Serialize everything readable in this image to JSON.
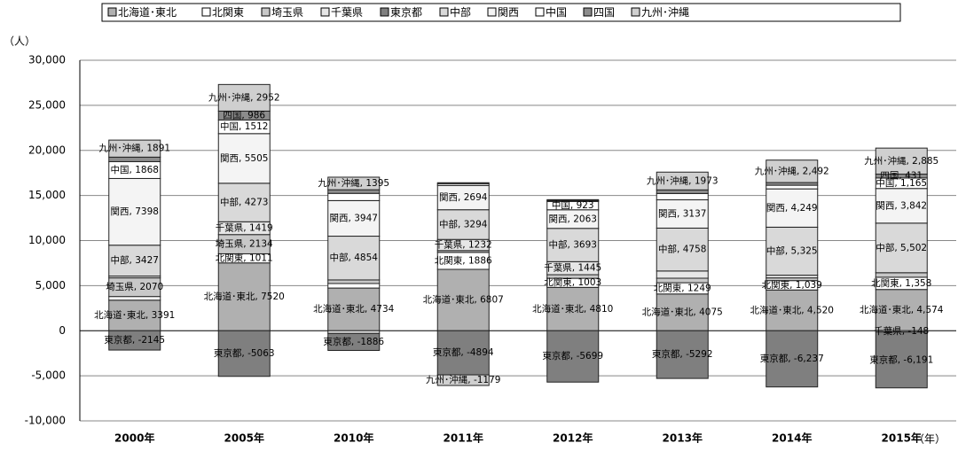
{
  "chart_data": {
    "type": "stacked-bar",
    "y_label": "（人）",
    "x_label": "（年）",
    "categories": [
      "2000年",
      "2005年",
      "2010年",
      "2011年",
      "2012年",
      "2013年",
      "2014年",
      "2015年"
    ],
    "ylim": [
      -10000,
      30000
    ],
    "yticks": [
      {
        "value": -10000,
        "label": "-10,000"
      },
      {
        "value": -5000,
        "label": "-5,000"
      },
      0,
      {
        "value": 5000,
        "label": "5,000"
      },
      {
        "value": 10000,
        "label": "10,000"
      },
      {
        "value": 15000,
        "label": "15,000"
      },
      {
        "value": 20000,
        "label": "20,000"
      },
      {
        "value": 25000,
        "label": "25,000"
      },
      {
        "value": 30000,
        "label": "30,000"
      }
    ],
    "grid": true,
    "legend": "top",
    "series": [
      {
        "name": "北海道･東北",
        "color": "#b0b0b0",
        "values": [
          3391,
          7520,
          4734,
          6807,
          4810,
          4075,
          4520,
          4574
        ],
        "value_labels": [
          "北海道･東北, 3391",
          "北海道･東北, 7520",
          "北海道･東北, 4734",
          "北海道･東北, 6807",
          "北海道･東北, 4810",
          "北海道･東北, 4075",
          "北海道･東北, 4,520",
          "北海道･東北, 4,574"
        ]
      },
      {
        "name": "北関東",
        "color": "#ffffff",
        "values": [
          400,
          1011,
          500,
          1886,
          1003,
          1249,
          1039,
          1358
        ],
        "value_labels": [
          null,
          "北関東, 1011",
          null,
          "北関東, 1886",
          "北関東, 1003",
          "北関東, 1249",
          "北関東, 1,039",
          "北関東, 1,358"
        ]
      },
      {
        "name": "埼玉県",
        "color": "#c8c8c8",
        "values": [
          2070,
          2134,
          400,
          200,
          400,
          500,
          300,
          500
        ],
        "value_labels": [
          "埼玉県, 2070",
          "埼玉県, 2134",
          null,
          null,
          null,
          null,
          null,
          null
        ]
      },
      {
        "name": "千葉県",
        "color": "#e6e6e6",
        "values": [
          200,
          1419,
          -300,
          1232,
          1445,
          800,
          300,
          -148
        ],
        "value_labels": [
          null,
          "千葉県, 1419",
          null,
          "千葉県, 1232",
          "千葉県, 1445",
          null,
          null,
          "千葉県, -148"
        ]
      },
      {
        "name": "東京都",
        "color": "#7f7f7f",
        "values": [
          -2145,
          -5063,
          -1886,
          -4894,
          -5699,
          -5292,
          -6237,
          -6191
        ],
        "value_labels": [
          "東京都, -2145",
          "東京都, -5063",
          "東京都, -1886",
          "東京都, -4894",
          "東京都, -5699",
          "東京都, -5292",
          "東京都, -6,237",
          "東京都, -6,191"
        ]
      },
      {
        "name": "中部",
        "color": "#d9d9d9",
        "values": [
          3427,
          4273,
          4854,
          3294,
          3693,
          4758,
          5325,
          5502
        ],
        "value_labels": [
          "中部, 3427",
          "中部, 4273",
          "中部, 4854",
          "中部, 3294",
          "中部, 3693",
          "中部, 4758",
          "中部, 5,325",
          "中部, 5,502"
        ]
      },
      {
        "name": "関西",
        "color": "#f4f4f4",
        "values": [
          7398,
          5505,
          3947,
          2694,
          2063,
          3137,
          4249,
          3842
        ],
        "value_labels": [
          "関西, 7398",
          "関西, 5505",
          "関西, 3947",
          "関西, 2694",
          "関西, 2063",
          "関西, 3137",
          "関西, 4,249",
          "関西, 3,842"
        ]
      },
      {
        "name": "中国",
        "color": "#ffffff",
        "values": [
          1868,
          1512,
          800,
          200,
          923,
          700,
          400,
          1165
        ],
        "value_labels": [
          "中国, 1868",
          "中国, 1512",
          null,
          null,
          "中国, 923",
          null,
          null,
          "中国, 1,165"
        ]
      },
      {
        "name": "四国",
        "color": "#8c8c8c",
        "values": [
          500,
          986,
          400,
          100,
          100,
          400,
          300,
          431
        ],
        "value_labels": [
          null,
          "四国, 986",
          null,
          null,
          null,
          null,
          null,
          "四国, 431"
        ]
      },
      {
        "name": "九州･沖縄",
        "color": "#cfcfcf",
        "values": [
          1891,
          2952,
          1395,
          -1179,
          100,
          1973,
          2492,
          2885
        ],
        "value_labels": [
          "九州･沖縄, 1891",
          "九州･沖縄, 2952",
          "九州･沖縄, 1395",
          "九州･沖縄, -1179",
          null,
          "九州･沖縄, 1973",
          "九州･沖縄, 2,492",
          "九州･沖縄, 2,885"
        ]
      }
    ]
  }
}
